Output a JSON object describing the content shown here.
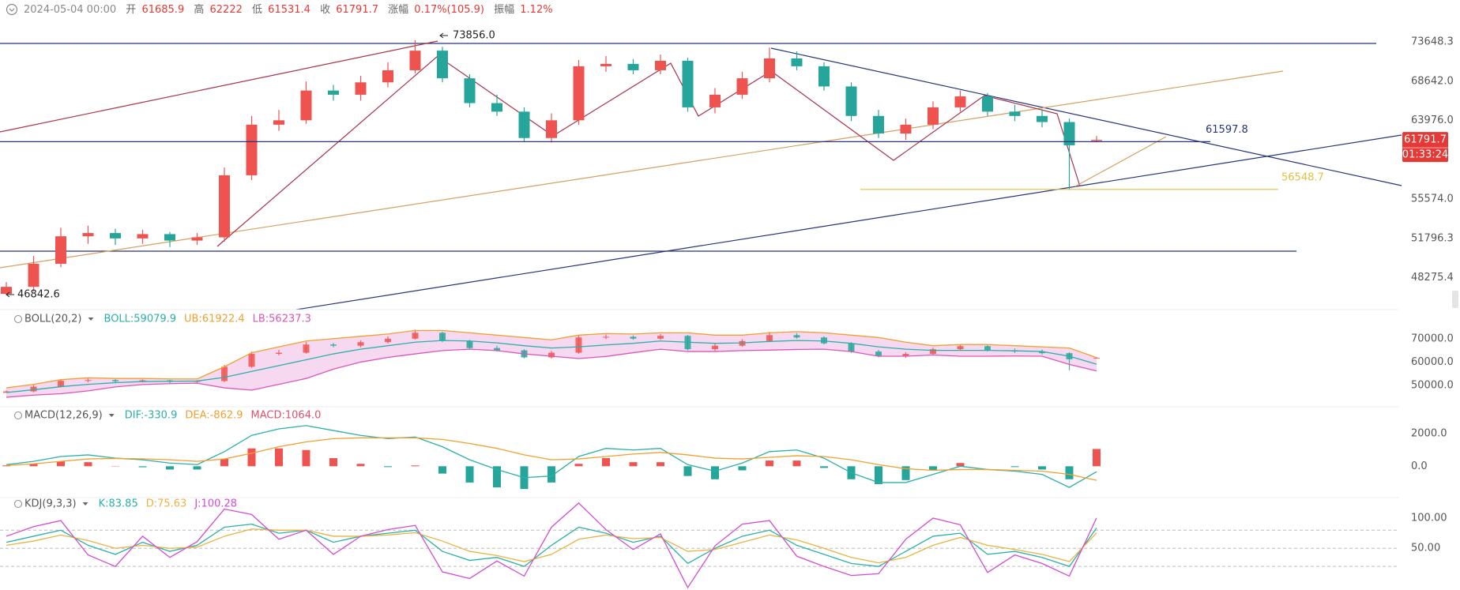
{
  "header": {
    "date": "2024-05-04 00:00",
    "open_label": "开",
    "high_label": "高",
    "low_label": "低",
    "close_label": "收",
    "change_label": "涨幅",
    "change": "0.17%(105.9)",
    "amplitude_label": "振幅",
    "amplitude": "1.12%"
  },
  "chart_data": [
    {
      "type": "candlestick",
      "log_scale": true,
      "grid": false,
      "up_color": "#ef5350",
      "down_color": "#26a69a",
      "open": [
        46900,
        47500,
        49500,
        52000,
        52300,
        51800,
        52200,
        51600,
        51900,
        58000,
        63500,
        64000,
        67500,
        67000,
        68500,
        70000,
        72500,
        69000,
        66000,
        65000,
        62000,
        64000,
        70500,
        70800,
        70000,
        71200,
        65500,
        67000,
        69000,
        71500,
        70500,
        68000,
        64500,
        62500,
        63500,
        65500,
        66800,
        65000,
        64500,
        63800,
        61685.9
      ],
      "high": [
        47900,
        50200,
        52800,
        53000,
        52700,
        52600,
        52400,
        52300,
        58800,
        64500,
        65200,
        68600,
        68200,
        69300,
        71000,
        73856,
        73000,
        69500,
        67000,
        65500,
        64800,
        71300,
        71800,
        71400,
        72000,
        71600,
        67800,
        69800,
        72900,
        72400,
        71000,
        68500,
        65200,
        64200,
        66200,
        67500,
        67200,
        65800,
        65300,
        64200,
        62222.0
      ],
      "low": [
        46842.6,
        47100,
        49200,
        51300,
        51200,
        51300,
        51000,
        51200,
        51500,
        57500,
        62800,
        63600,
        66300,
        66300,
        67900,
        69600,
        68500,
        65500,
        64500,
        61600,
        61500,
        63500,
        69800,
        69500,
        69500,
        65000,
        64800,
        66500,
        68500,
        70000,
        67500,
        63900,
        62000,
        61800,
        63000,
        65000,
        64500,
        63900,
        63200,
        56500,
        61531.4
      ],
      "close": [
        47500,
        49500,
        52000,
        52300,
        51800,
        52200,
        51600,
        51900,
        58000,
        63500,
        64000,
        67500,
        67000,
        68500,
        70000,
        72500,
        69000,
        66000,
        65000,
        62000,
        64000,
        70500,
        70800,
        70000,
        71200,
        65500,
        67000,
        69000,
        71500,
        70500,
        68000,
        64500,
        62500,
        63500,
        65500,
        66800,
        65000,
        64500,
        63800,
        61200,
        61791.7
      ],
      "ylim": [
        45600,
        77060
      ],
      "yticks": [
        73648.3,
        {
          "value": 68642.0,
          "label": "68642.0"
        },
        {
          "value": 63976.0,
          "label": "63976.0"
        },
        {
          "value": 55574.0,
          "label": "55574.0"
        },
        51796.3,
        48275.4
      ],
      "annotations": [
        {
          "value": 73856,
          "label": "73856.0",
          "color": "#222222"
        },
        {
          "value": 46842.6,
          "color": "#222222"
        },
        {
          "value": 61597.8,
          "color": "#27337a"
        },
        {
          "value": 56548.7,
          "color": "#e0c040"
        }
      ],
      "price_color": "#e53935",
      "countdown": "01:33:24"
    },
    {
      "type": "boll",
      "title": "BOLL(20,2)",
      "band_color": "#f6d9f1",
      "ylim": [
        41600,
        82400
      ],
      "yticks": [
        {
          "value": 70000,
          "label": "70000.0"
        },
        {
          "value": 60000,
          "label": "60000.0"
        },
        {
          "value": 50000,
          "label": "50000.0"
        }
      ],
      "series": [
        {
          "name": "BOLL:59079.9",
          "color": "#2ab0a8",
          "values": [
            47000,
            48200,
            49500,
            50500,
            51200,
            51700,
            51800,
            51900,
            53500,
            56000,
            58500,
            61000,
            63500,
            65500,
            67000,
            68500,
            69200,
            69000,
            68200,
            67000,
            66000,
            66500,
            67300,
            68000,
            69000,
            68500,
            68000,
            68200,
            68800,
            69200,
            69000,
            68000,
            66500,
            65500,
            65000,
            65000,
            65000,
            64800,
            64500,
            62500,
            59079.9
          ]
        },
        {
          "name": "UB:61922.4",
          "color": "#f0a030",
          "values": [
            49000,
            50500,
            52500,
            53300,
            53000,
            53000,
            52800,
            52800,
            58000,
            64000,
            66500,
            69000,
            70000,
            71000,
            72000,
            73500,
            73500,
            72500,
            71500,
            70500,
            69500,
            71500,
            72200,
            72000,
            72500,
            72500,
            71500,
            71500,
            72500,
            73000,
            72500,
            71500,
            70500,
            68500,
            67000,
            67500,
            67500,
            67000,
            66500,
            66000,
            61922.4
          ]
        },
        {
          "name": "LB:56237.3",
          "color": "#d957b8",
          "values": [
            45000,
            45900,
            46500,
            47700,
            49400,
            50400,
            50800,
            51000,
            49000,
            48000,
            50500,
            53000,
            57000,
            60000,
            62000,
            63500,
            64900,
            65500,
            64900,
            63500,
            62500,
            61500,
            62400,
            64000,
            65500,
            64500,
            64500,
            64900,
            65100,
            65400,
            65500,
            64500,
            62500,
            62500,
            63000,
            62500,
            62500,
            62600,
            62500,
            59000,
            56237.3
          ]
        }
      ]
    },
    {
      "type": "macd",
      "title": "MACD(12,26,9)",
      "up_color": "#ef5350",
      "down_color": "#26a69a",
      "ylim": [
        -1830,
        3660
      ],
      "yticks": [
        {
          "value": 2000,
          "label": "2000.0"
        },
        {
          "value": 0,
          "label": "0.0"
        }
      ],
      "series": [
        {
          "name": "DIF:-330.9",
          "color": "#2ab0a8",
          "values": [
            100,
            300,
            600,
            700,
            500,
            400,
            200,
            100,
            900,
            1900,
            2300,
            2500,
            2200,
            1900,
            1700,
            1800,
            1200,
            400,
            -200,
            -700,
            -600,
            600,
            1100,
            1000,
            1100,
            100,
            -300,
            200,
            900,
            1000,
            500,
            -400,
            -1000,
            -1000,
            -500,
            0,
            -200,
            -300,
            -500,
            -1300,
            -330.9
          ]
        },
        {
          "name": "DEA:-862.9",
          "color": "#f0a030",
          "values": [
            50,
            150,
            300,
            450,
            480,
            460,
            400,
            300,
            450,
            800,
            1200,
            1500,
            1700,
            1750,
            1750,
            1750,
            1650,
            1400,
            1100,
            700,
            400,
            450,
            600,
            750,
            850,
            700,
            500,
            450,
            550,
            650,
            600,
            400,
            100,
            -150,
            -250,
            -200,
            -200,
            -250,
            -300,
            -500,
            -862.9
          ]
        },
        {
          "name": "MACD:1064.0",
          "color": "#e0506a",
          "values": [
            50,
            150,
            300,
            250,
            20,
            -60,
            -200,
            -200,
            450,
            1100,
            1100,
            1000,
            500,
            150,
            -50,
            50,
            -450,
            -1000,
            -1300,
            -1400,
            -1000,
            150,
            500,
            250,
            250,
            -600,
            -800,
            -250,
            350,
            350,
            -100,
            -800,
            -1100,
            -850,
            -250,
            200,
            0,
            -50,
            -200,
            -800,
            1064.0
          ]
        }
      ]
    },
    {
      "type": "kdj",
      "title": "KDJ(9,3,3)",
      "ylim": [
        -19,
        134
      ],
      "yticks": [
        {
          "value": 100,
          "label": "100.00"
        },
        {
          "value": 50,
          "label": "50.00"
        }
      ],
      "levels": [
        80,
        50,
        20
      ],
      "series": [
        {
          "name": "K:83.85",
          "color": "#2ab0a8",
          "values": [
            60,
            70,
            80,
            55,
            40,
            60,
            45,
            55,
            85,
            90,
            75,
            80,
            60,
            70,
            75,
            80,
            45,
            30,
            35,
            20,
            55,
            85,
            75,
            60,
            70,
            25,
            50,
            70,
            80,
            55,
            40,
            25,
            20,
            45,
            70,
            75,
            40,
            45,
            35,
            20,
            83.85
          ]
        },
        {
          "name": "D:75.63",
          "color": "#e8b341",
          "values": [
            55,
            62,
            72,
            63,
            50,
            55,
            50,
            52,
            70,
            82,
            80,
            80,
            70,
            70,
            72,
            76,
            62,
            45,
            38,
            28,
            40,
            65,
            72,
            66,
            68,
            45,
            48,
            60,
            72,
            64,
            50,
            35,
            26,
            35,
            55,
            68,
            55,
            48,
            40,
            28,
            75.63
          ]
        },
        {
          "name": "J:100.28",
          "color": "#d24bd2",
          "values": [
            70,
            86,
            96,
            39,
            20,
            70,
            35,
            61,
            115,
            106,
            65,
            80,
            40,
            70,
            81,
            88,
            11,
            0,
            29,
            4,
            85,
            125,
            81,
            48,
            74,
            -15,
            54,
            90,
            96,
            37,
            20,
            5,
            8,
            65,
            100,
            89,
            10,
            39,
            25,
            4,
            100.28
          ]
        }
      ]
    }
  ]
}
